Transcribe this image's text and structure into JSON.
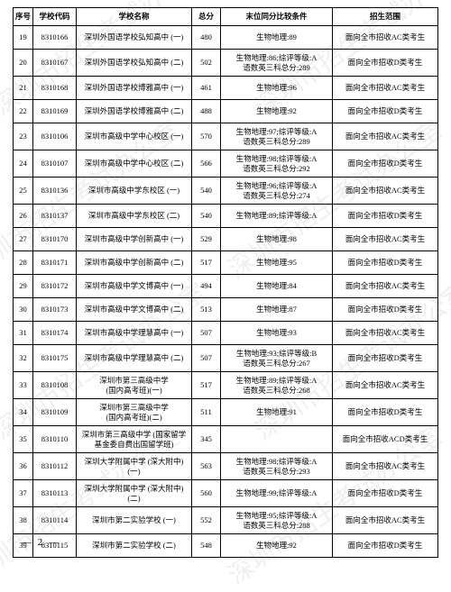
{
  "watermark_text": "深圳市招生考试办公室",
  "headers": {
    "seq": "序号",
    "code": "学校代码",
    "name": "学校名称",
    "score": "总分",
    "cond": "末位同分比较条件",
    "scope": "招生范围"
  },
  "rows": [
    {
      "seq": "19",
      "code": "8310166",
      "name": "深圳外国语学校弘知高中 (一)",
      "score": "480",
      "cond": "生物地理:89",
      "scope": "面向全市招收AC类考生"
    },
    {
      "seq": "20",
      "code": "8310167",
      "name": "深圳外国语学校弘知高中 (二)",
      "score": "502",
      "cond": "生物地理:86;综评等级:A\n语数英三科总分:289",
      "scope": "面向全市招收D类考生"
    },
    {
      "seq": "21",
      "code": "8310168",
      "name": "深圳外国语学校博雅高中 (一)",
      "score": "461",
      "cond": "生物地理:96",
      "scope": "面向全市招收AC类考生"
    },
    {
      "seq": "22",
      "code": "8310169",
      "name": "深圳外国语学校博雅高中 (二)",
      "score": "488",
      "cond": "生物地理:92",
      "scope": "面向全市招收D类考生"
    },
    {
      "seq": "23",
      "code": "8310106",
      "name": "深圳市高级中学中心校区 (一)",
      "score": "570",
      "cond": "生物地理:97;综评等级:A\n语数英三科总分:289",
      "scope": "面向全市招收AC类考生"
    },
    {
      "seq": "24",
      "code": "8310107",
      "name": "深圳市高级中学中心校区 (二)",
      "score": "566",
      "cond": "生物地理:98;综评等级:A\n语数英三科总分:292",
      "scope": "面向全市招收D类考生"
    },
    {
      "seq": "25",
      "code": "8310136",
      "name": "深圳市高级中学东校区 (一)",
      "score": "540",
      "cond": "生物地理:96;综评等级:A\n语数英三科总分:274",
      "scope": "面向全市招收AC类考生"
    },
    {
      "seq": "26",
      "code": "8310137",
      "name": "深圳市高级中学东校区 (二)",
      "score": "540",
      "cond": "生物地理:89;综评等级:A",
      "scope": "面向全市招收D类考生"
    },
    {
      "seq": "27",
      "code": "8310170",
      "name": "深圳市高级中学创新高中 (一)",
      "score": "529",
      "cond": "生物地理:98",
      "scope": "面向全市招收AC类考生"
    },
    {
      "seq": "28",
      "code": "8310171",
      "name": "深圳市高级中学创新高中 (二)",
      "score": "517",
      "cond": "生物地理:95",
      "scope": "面向全市招收D类考生"
    },
    {
      "seq": "29",
      "code": "8310172",
      "name": "深圳市高级中学文博高中 (一)",
      "score": "494",
      "cond": "生物地理:84",
      "scope": "面向全市招收AC类考生"
    },
    {
      "seq": "30",
      "code": "8310173",
      "name": "深圳市高级中学文博高中 (二)",
      "score": "513",
      "cond": "生物地理:87",
      "scope": "面向全市招收D类考生"
    },
    {
      "seq": "31",
      "code": "8310174",
      "name": "深圳市高级中学理慧高中 (一)",
      "score": "507",
      "cond": "生物地理:93",
      "scope": "面向全市招收AC类考生"
    },
    {
      "seq": "32",
      "code": "8310175",
      "name": "深圳市高级中学理慧高中 (二)",
      "score": "507",
      "cond": "生物地理:93;综评等级:B\n语数英三科总分:267",
      "scope": "面向全市招收D类考生"
    },
    {
      "seq": "33",
      "code": "8310108",
      "name": "深圳市第三高级中学\n(国内高考班)(一)",
      "score": "517",
      "cond": "生物地理:89;综评等级:A\n语数英三科总分:268",
      "scope": "面向全市招收AC类考生"
    },
    {
      "seq": "34",
      "code": "8310109",
      "name": "深圳市第三高级中学\n(国内高考班)(二)",
      "score": "511",
      "cond": "生物地理:91",
      "scope": "面向全市招收D类考生"
    },
    {
      "seq": "35",
      "code": "8310110",
      "name": "深圳市第三高级中学 (国家留学\n基金委自费出国留学班)",
      "score": "345",
      "cond": "",
      "scope": "面向全市招收ACD类考生"
    },
    {
      "seq": "36",
      "code": "8310112",
      "name": "深圳大学附属中学 (深大附中)\n(一)",
      "score": "563",
      "cond": "生物地理:98;综评等级:A\n语数英三科总分:293",
      "scope": "面向全市招收AC类考生"
    },
    {
      "seq": "37",
      "code": "8310113",
      "name": "深圳大学附属中学 (深大附中)\n(二)",
      "score": "560",
      "cond": "生物地理:99;综评等级:A",
      "scope": "面向全市招收D类考生"
    },
    {
      "seq": "38",
      "code": "8310114",
      "name": "深圳市第二实验学校 (一)",
      "score": "552",
      "cond": "生物地理:95;综评等级:A\n语数英三科总分:288",
      "scope": "面向全市招收AC类考生"
    },
    {
      "seq": "39",
      "code": "8310115",
      "name": "深圳市第二实验学校 (二)",
      "score": "548",
      "cond": "生物地理:92",
      "scope": "面向全市招收D类考生"
    }
  ],
  "page_number": "— 2 —"
}
